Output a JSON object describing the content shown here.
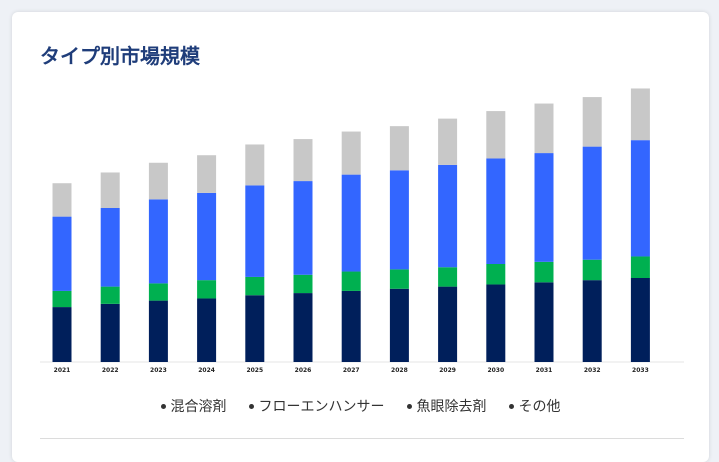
{
  "card": {
    "title": "タイプ別市場規模"
  },
  "chart_data": {
    "type": "bar",
    "stacked": true,
    "categories": [
      "2021",
      "2022",
      "2023",
      "2024",
      "2025",
      "2026",
      "2027",
      "2028",
      "2029",
      "2030",
      "2031",
      "2032",
      "2033"
    ],
    "series": [
      {
        "name": "混合溶剤",
        "color": "#001f5b",
        "values": [
          51,
          54,
          57,
          59,
          62,
          64,
          66,
          68,
          70,
          72,
          74,
          76,
          78
        ]
      },
      {
        "name": "フローエンハンサー",
        "color": "#00b050",
        "values": [
          15,
          16,
          16,
          17,
          17,
          17,
          18,
          18,
          18,
          19,
          19,
          19,
          20
        ]
      },
      {
        "name": "魚眼除去剤",
        "color": "#3366ff",
        "values": [
          69,
          73,
          78,
          81,
          85,
          87,
          90,
          92,
          95,
          98,
          101,
          105,
          108
        ]
      },
      {
        "name": "その他",
        "color": "#c8c8c8",
        "values": [
          31,
          33,
          34,
          35,
          38,
          39,
          40,
          41,
          43,
          44,
          46,
          46,
          48
        ]
      }
    ],
    "ylim": [
      0,
      260
    ],
    "grid": false,
    "legend_position": "bottom"
  }
}
